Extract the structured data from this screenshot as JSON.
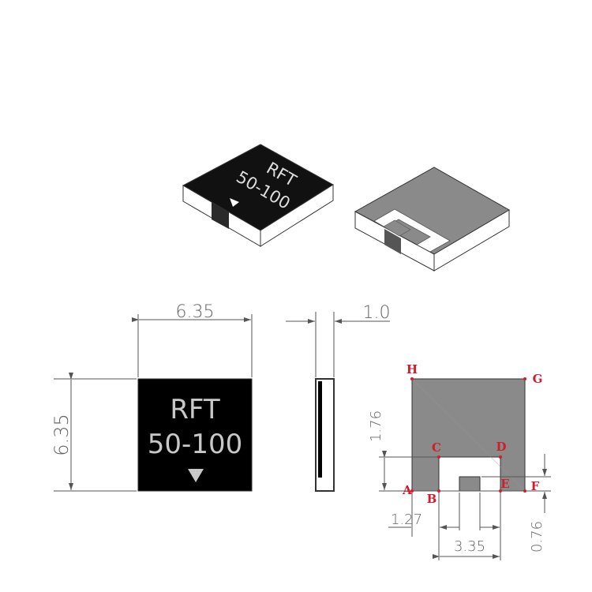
{
  "iso_top": {
    "line1": "RFT",
    "line2": "50-100"
  },
  "front_view": {
    "width_dim": "6.35",
    "height_dim": "6.35",
    "label_line1": "RFT",
    "label_line2": "50-100"
  },
  "side_view": {
    "thickness_dim": "1.0"
  },
  "pad_view": {
    "dims": {
      "upper": "1.76",
      "left": "1.27",
      "gap": "3.35",
      "tab": "0.76"
    },
    "points": {
      "A": "A",
      "B": "B",
      "C": "C",
      "D": "D",
      "E": "E",
      "F": "F",
      "G": "G",
      "H": "H"
    }
  },
  "colors": {
    "body": "#000000",
    "pad": "#8a8a8a",
    "text": "#c8c8c8",
    "point": "#d11c2a"
  }
}
